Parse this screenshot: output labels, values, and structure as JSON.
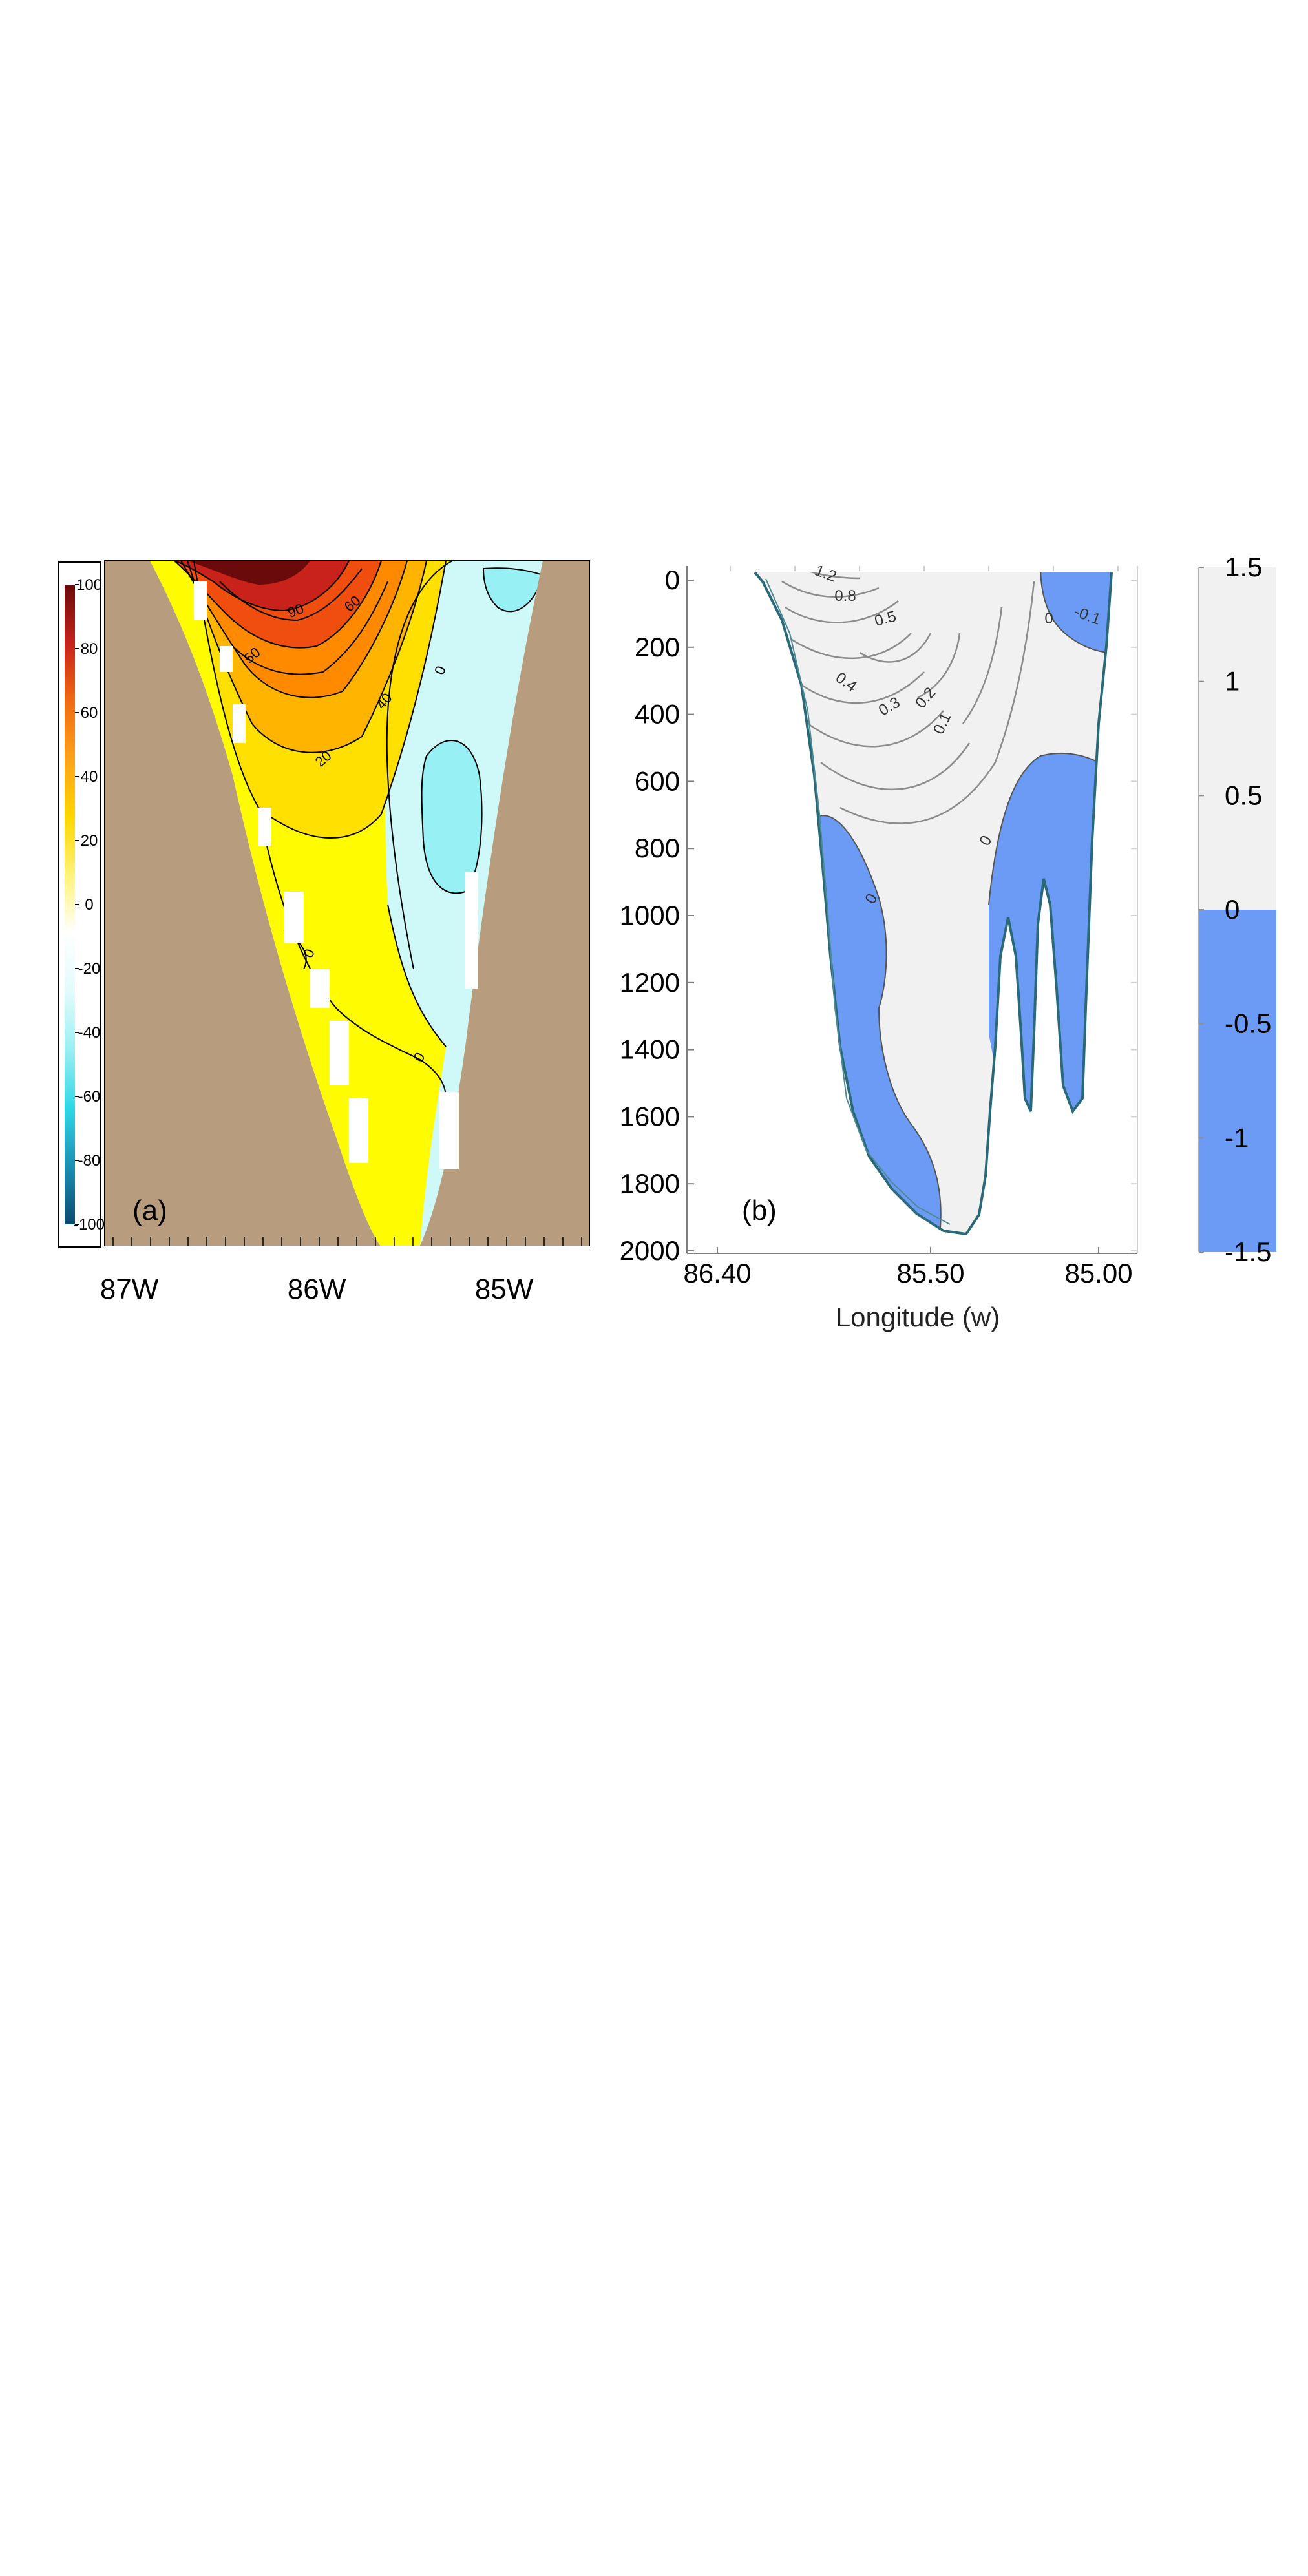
{
  "colors": {
    "land": "#b89c7e",
    "negative_fill": "#6b9bf5",
    "positive_fill": "#f1f1f1",
    "contour_a": "#000000",
    "contour_b": "#808080",
    "bathymetry_b": "#2a6a78",
    "axis": "#7f7f7f",
    "colorbar_a": [
      "#0b4a6f",
      "#1b8fb5",
      "#2ed8e6",
      "#9aeff2",
      "#e2fbfb",
      "#ffffff",
      "#fff37a",
      "#ffd700",
      "#ffa21a",
      "#f06a0f",
      "#c7221b",
      "#6b0a0a"
    ]
  },
  "chart_data": [
    {
      "type": "heatmap",
      "panel_label": "(a)",
      "xticks": [
        "87W",
        "86W",
        "85W"
      ],
      "colorbar": {
        "ticks": [
          "100",
          "80",
          "60",
          "40",
          "20",
          "0",
          "-20",
          "-40",
          "-60",
          "-80",
          "-100"
        ],
        "range": [
          -100,
          100
        ]
      },
      "contour_labels": [
        "90",
        "60",
        "50",
        "40",
        "20",
        "0",
        "0",
        "0"
      ],
      "land": true
    },
    {
      "type": "heatmap",
      "panel_label": "(b)",
      "yticks": [
        "0",
        "200",
        "400",
        "600",
        "800",
        "1000",
        "1200",
        "1400",
        "1600",
        "1800",
        "2000"
      ],
      "ylim": [
        2000,
        0
      ],
      "xticks": [
        "86.40",
        "85.50",
        "85.00"
      ],
      "xlabel": "Longitude (w)",
      "contour_labels": [
        "1.2",
        "0.8",
        "0.5",
        "0.4",
        "0.3",
        "0.2",
        "0.1",
        "0",
        "0",
        "0",
        "-0.1"
      ],
      "colorbar": {
        "ticks": [
          "1.5",
          "1",
          "0.5",
          "0",
          "-0.5",
          "-1",
          "-1.5"
        ],
        "range": [
          -1.5,
          1.5
        ]
      }
    }
  ]
}
